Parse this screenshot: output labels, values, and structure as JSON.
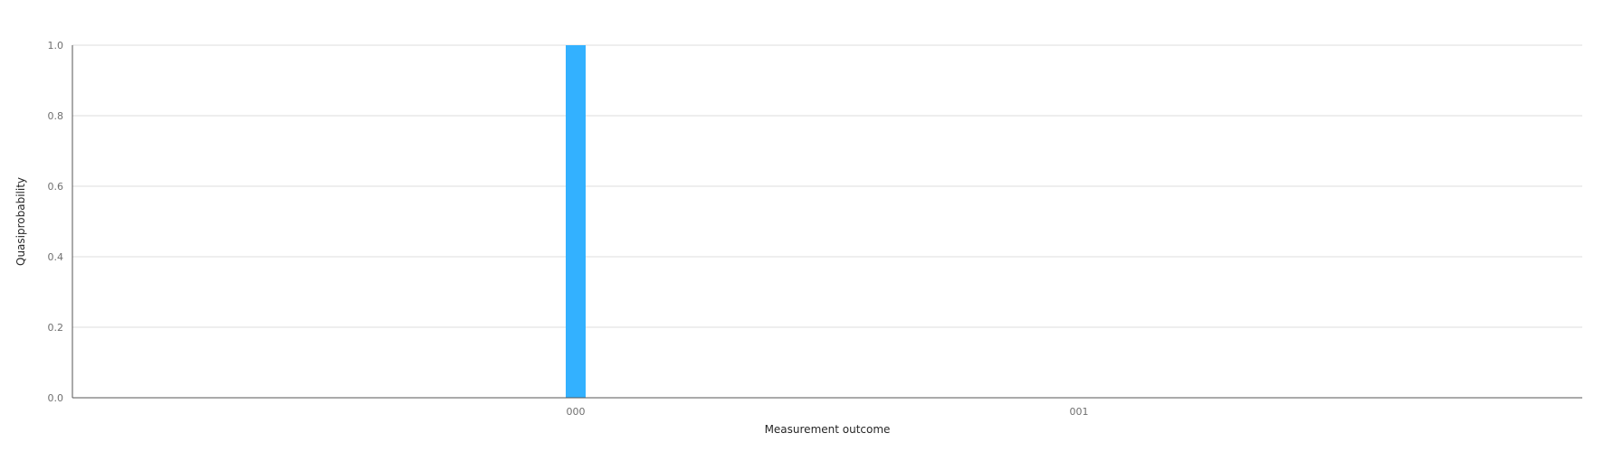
{
  "chart_data": {
    "type": "bar",
    "categories": [
      "000",
      "001"
    ],
    "values": [
      1.0,
      0.0
    ],
    "xlabel": "Measurement outcome",
    "ylabel": "Quasiprobability",
    "ylim": [
      0,
      1.0
    ],
    "yticks": [
      "0.0",
      "0.2",
      "0.4",
      "0.6",
      "0.8",
      "1.0"
    ],
    "grid": true,
    "bar_color": "#33b1ff"
  }
}
